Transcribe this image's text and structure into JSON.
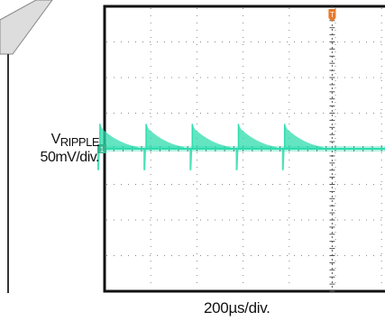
{
  "chart_data": {
    "type": "line",
    "title": "",
    "xlabel": "200µs/div.",
    "ylabel_main": "V",
    "ylabel_sub": "RIPPLE",
    "ylabel_scale": "50mV/div.",
    "channel_marker": "1",
    "trigger_marker": "T",
    "x_divisions": 10,
    "y_divisions": 8,
    "grid": true,
    "x_unit": "µs",
    "y_unit": "mV",
    "ylim": [
      -200,
      200
    ],
    "series": [
      {
        "color": "#2fdcae",
        "period_us": 200,
        "spike_times_us": [
          -420,
          -220,
          -20,
          180,
          380,
          580,
          780
        ],
        "spike_peak_mv": 35,
        "spike_trough_mv": -30,
        "baseline_mv": 0,
        "band_mv": 8
      }
    ]
  },
  "colors": {
    "grid_border": "#111111",
    "grid_dots": "#8a8a8a",
    "trace": "#2fdcae",
    "marker": "#2fb48f",
    "trigger": "#e87a2a",
    "decoration": "#d9d9d9"
  }
}
